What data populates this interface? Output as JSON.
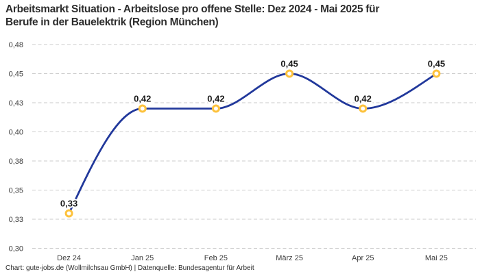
{
  "title": {
    "line1": "Arbeitsmarkt Situation - Arbeitslose pro offene Stelle: Dez 2024 - Mai 2025 für",
    "line2": "Berufe in der Bauelektrik (Region München)"
  },
  "footer": {
    "source_line": "Chart: gute-jobs.de (Wollmilchsau GmbH) | Datenquelle: Bundesagentur für Arbeit"
  },
  "chart_data": {
    "type": "line",
    "title": "Arbeitsmarkt Situation - Arbeitslose pro offene Stelle: Dez 2024 - Mai 2025 für Berufe in der Bauelektrik (Region München)",
    "categories": [
      "Dez 24",
      "Jan 25",
      "Feb 25",
      "März 25",
      "Apr 25",
      "Mai 25"
    ],
    "values": [
      0.33,
      0.42,
      0.42,
      0.45,
      0.42,
      0.45
    ],
    "point_labels": [
      "0,33",
      "0,42",
      "0,42",
      "0,45",
      "0,42",
      "0,45"
    ],
    "y_ticks": {
      "values": [
        0.3,
        0.325,
        0.35,
        0.375,
        0.4,
        0.425,
        0.45,
        0.475
      ],
      "labels": [
        "0,30",
        "0,33",
        "0,35",
        "0,38",
        "0,40",
        "0,43",
        "0,45",
        "0,48"
      ]
    },
    "ylim": [
      0.3,
      0.475
    ],
    "xlabel": "",
    "ylabel": "",
    "grid": "horizontal-dashed",
    "legend": "none",
    "interpolation": "monotone",
    "colors": {
      "line": "#21389b",
      "point_ring": "#fdc23d",
      "point_fill": "#ffffff",
      "gridline": "#cbcbcb",
      "tick_text": "#3c3c3c",
      "value_label_text": "#191919",
      "title_text": "#2d2d2d",
      "background": "#ffffff"
    }
  }
}
